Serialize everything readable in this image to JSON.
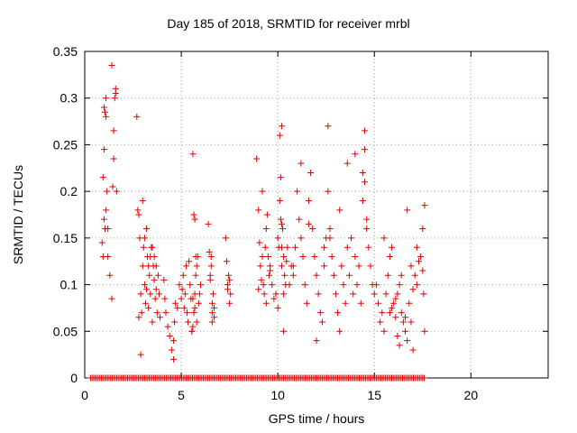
{
  "chart_data": {
    "type": "scatter",
    "title": "Day 185 of 2018, SRMTID for receiver mrbl",
    "xlabel": "GPS time / hours",
    "ylabel": "SRMTID / TECUs",
    "xlim": [
      0,
      24
    ],
    "ylim": [
      0,
      0.35
    ],
    "grid": true,
    "marker": "+",
    "color": "#e00000",
    "x_ticks": [
      0,
      5,
      10,
      15,
      20
    ],
    "x_tick_labels": [
      "0",
      "5",
      "10",
      "15",
      "20"
    ],
    "y_ticks": [
      0,
      0.05,
      0.1,
      0.15,
      0.2,
      0.25,
      0.3,
      0.35
    ],
    "y_tick_labels": [
      "0",
      "0.05",
      "0.1",
      "0.15",
      "0.2",
      "0.25",
      "0.3",
      "0.35"
    ],
    "series": [
      {
        "name": "SRMTID",
        "x": [
          0.9,
          0.95,
          1.0,
          1.0,
          1.05,
          1.1,
          1.1,
          1.15,
          1.2,
          1.3,
          1.4,
          1.45,
          1.5,
          1.5,
          1.55,
          1.6,
          1.6,
          1.65,
          1.0,
          1.1,
          1.2,
          1.4,
          0.95,
          1.05,
          2.7,
          2.75,
          2.8,
          2.85,
          2.9,
          2.95,
          3.0,
          3.05,
          3.1,
          3.15,
          3.2,
          3.25,
          3.3,
          3.35,
          3.4,
          3.45,
          3.5,
          3.55,
          3.6,
          3.65,
          3.7,
          3.75,
          3.8,
          3.85,
          3.9,
          2.9,
          3.0,
          3.1,
          3.2,
          3.3,
          3.4,
          3.5,
          3.6,
          2.8,
          3.7,
          4.1,
          4.15,
          4.2,
          4.3,
          4.4,
          4.5,
          4.6,
          4.7,
          4.8,
          4.9,
          5.0,
          5.05,
          5.1,
          5.15,
          5.2,
          5.25,
          5.3,
          5.35,
          5.4,
          5.45,
          5.5,
          5.55,
          5.6,
          5.65,
          5.7,
          5.75,
          5.8,
          5.85,
          5.9,
          5.95,
          6.0,
          4.6,
          4.65,
          5.6,
          5.7,
          5.65,
          5.75,
          5.6,
          5.7,
          5.8,
          5.55,
          6.4,
          6.45,
          6.5,
          6.55,
          6.6,
          6.65,
          6.7,
          6.5,
          6.55,
          6.6,
          6.6,
          6.7,
          7.3,
          7.35,
          7.4,
          7.45,
          7.5,
          7.55,
          7.4,
          7.5,
          8.9,
          9.0,
          9.05,
          9.1,
          9.15,
          9.2,
          9.25,
          9.3,
          9.35,
          9.4,
          9.45,
          9.5,
          9.55,
          9.6,
          9.7,
          9.8,
          9.9,
          10.0,
          10.05,
          10.1,
          10.15,
          10.2,
          10.25,
          10.3,
          10.35,
          10.4,
          10.45,
          10.5,
          9.0,
          9.2,
          9.4,
          9.6,
          10.1,
          10.2,
          10.15,
          10.2,
          10.3,
          10.2,
          10.3,
          10.0,
          10.6,
          10.7,
          10.8,
          10.9,
          11.0,
          11.1,
          11.2,
          11.3,
          11.4,
          11.5,
          11.6,
          11.7,
          11.8,
          11.9,
          12.0,
          12.1,
          12.2,
          12.3,
          12.4,
          12.5,
          12.6,
          12.7,
          12.8,
          12.9,
          13.0,
          13.1,
          13.2,
          13.3,
          13.4,
          13.5,
          13.6,
          13.7,
          13.8,
          13.9,
          14.0,
          14.1,
          14.2,
          14.3,
          14.4,
          14.5,
          14.6,
          14.7,
          14.8,
          14.9,
          15.0,
          12.0,
          12.6,
          13.6,
          14.0,
          14.4,
          14.5,
          14.5,
          14.6,
          13.2,
          12.7,
          11.6,
          11.2,
          12.4,
          10.8,
          15.1,
          15.2,
          15.3,
          15.4,
          15.5,
          15.6,
          15.7,
          15.8,
          15.9,
          16.0,
          16.1,
          16.2,
          16.3,
          16.4,
          16.5,
          16.6,
          16.7,
          16.8,
          16.9,
          17.0,
          17.1,
          17.2,
          17.3,
          17.4,
          17.5,
          17.55,
          17.6,
          15.5,
          15.8,
          16.1,
          16.3,
          16.6,
          16.9,
          17.2,
          17.5,
          16.2,
          16.4,
          15.9,
          16.7,
          17.6,
          17.0
        ],
        "y": [
          0.145,
          0.215,
          0.245,
          0.29,
          0.285,
          0.28,
          0.3,
          0.2,
          0.13,
          0.11,
          0.085,
          0.205,
          0.265,
          0.235,
          0.3,
          0.305,
          0.31,
          0.2,
          0.17,
          0.18,
          0.16,
          0.335,
          0.13,
          0.16,
          0.28,
          0.18,
          0.175,
          0.15,
          0.09,
          0.07,
          0.12,
          0.14,
          0.1,
          0.08,
          0.16,
          0.13,
          0.12,
          0.11,
          0.09,
          0.14,
          0.06,
          0.12,
          0.105,
          0.085,
          0.12,
          0.07,
          0.11,
          0.09,
          0.065,
          0.025,
          0.19,
          0.15,
          0.095,
          0.075,
          0.13,
          0.14,
          0.13,
          0.065,
          0.095,
          0.105,
          0.085,
          0.07,
          0.055,
          0.045,
          0.03,
          0.02,
          0.08,
          0.075,
          0.1,
          0.085,
          0.095,
          0.11,
          0.075,
          0.09,
          0.12,
          0.07,
          0.06,
          0.125,
          0.1,
          0.085,
          0.05,
          0.055,
          0.07,
          0.09,
          0.11,
          0.12,
          0.13,
          0.08,
          0.09,
          0.1,
          0.04,
          0.06,
          0.24,
          0.17,
          0.175,
          0.13,
          0.085,
          0.075,
          0.06,
          0.05,
          0.165,
          0.135,
          0.11,
          0.13,
          0.07,
          0.09,
          0.075,
          0.105,
          0.12,
          0.08,
          0.06,
          0.065,
          0.15,
          0.125,
          0.095,
          0.11,
          0.08,
          0.09,
          0.1,
          0.105,
          0.235,
          0.18,
          0.145,
          0.12,
          0.105,
          0.13,
          0.1,
          0.09,
          0.14,
          0.16,
          0.175,
          0.13,
          0.11,
          0.12,
          0.1,
          0.085,
          0.09,
          0.15,
          0.14,
          0.19,
          0.17,
          0.14,
          0.16,
          0.13,
          0.11,
          0.1,
          0.125,
          0.14,
          0.095,
          0.2,
          0.08,
          0.115,
          0.26,
          0.27,
          0.215,
          0.165,
          0.05,
          0.12,
          0.09,
          0.075,
          0.1,
          0.12,
          0.11,
          0.14,
          0.2,
          0.17,
          0.15,
          0.13,
          0.1,
          0.08,
          0.19,
          0.22,
          0.16,
          0.13,
          0.11,
          0.09,
          0.07,
          0.06,
          0.12,
          0.15,
          0.2,
          0.16,
          0.13,
          0.11,
          0.09,
          0.07,
          0.05,
          0.12,
          0.1,
          0.08,
          0.14,
          0.11,
          0.15,
          0.09,
          0.13,
          0.1,
          0.12,
          0.08,
          0.19,
          0.21,
          0.16,
          0.14,
          0.12,
          0.1,
          0.09,
          0.04,
          0.27,
          0.23,
          0.24,
          0.22,
          0.265,
          0.245,
          0.17,
          0.18,
          0.15,
          0.165,
          0.23,
          0.14,
          0.12,
          0.1,
          0.08,
          0.06,
          0.07,
          0.05,
          0.09,
          0.11,
          0.13,
          0.075,
          0.08,
          0.065,
          0.09,
          0.1,
          0.07,
          0.06,
          0.05,
          0.04,
          0.08,
          0.12,
          0.095,
          0.11,
          0.14,
          0.125,
          0.13,
          0.115,
          0.09,
          0.05,
          0.15,
          0.07,
          0.085,
          0.035,
          0.065,
          0.06,
          0.1,
          0.16,
          0.045,
          0.11,
          0.14,
          0.18,
          0.185,
          0.03
        ]
      },
      {
        "name": "zero-level samples",
        "x_range": [
          0.3,
          17.6
        ],
        "y": 0
      }
    ]
  }
}
